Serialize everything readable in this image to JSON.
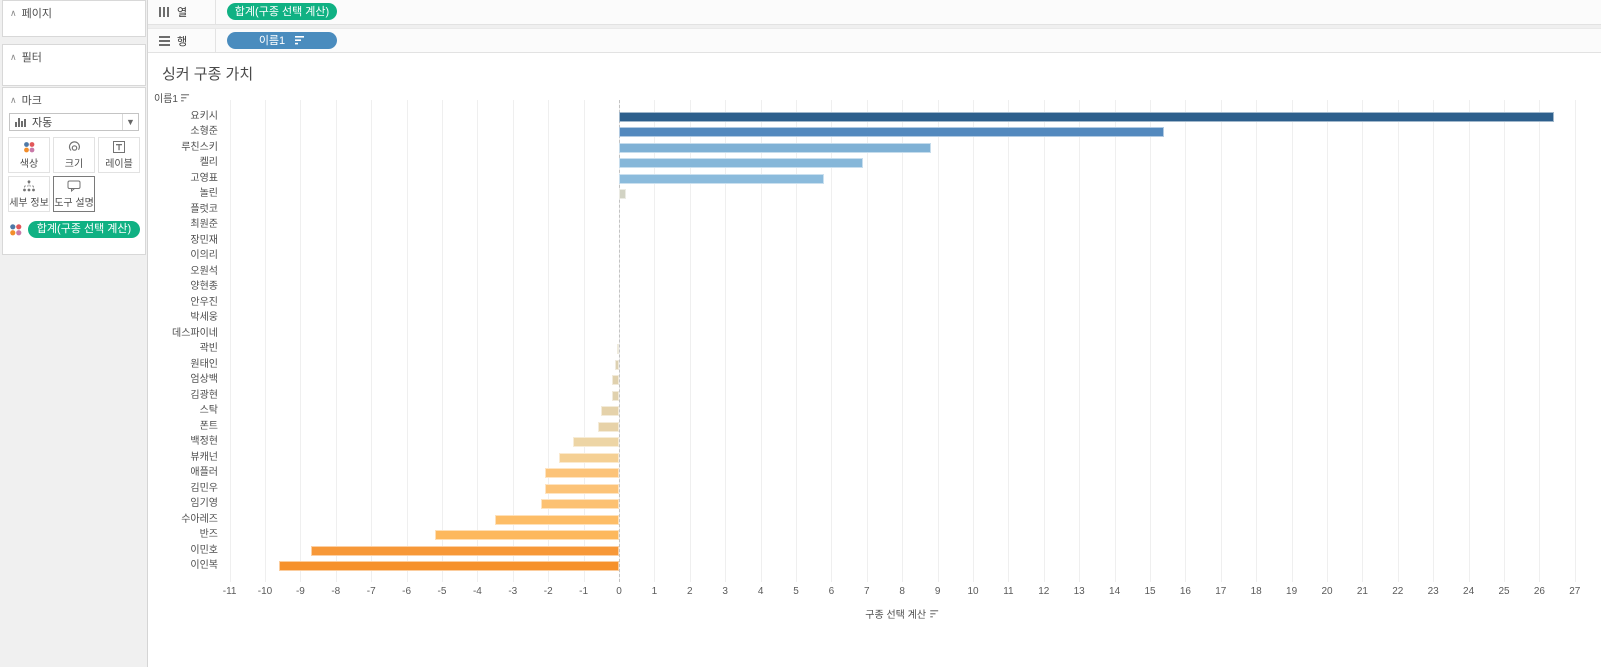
{
  "sidebar": {
    "pages": {
      "label": "페이지"
    },
    "filters": {
      "label": "필터"
    },
    "marks": {
      "label": "마크",
      "mark_type": "자동",
      "buttons": [
        {
          "label": "색상"
        },
        {
          "label": "크기"
        },
        {
          "label": "레이블"
        },
        {
          "label": "세부 정보"
        },
        {
          "label": "도구 설명"
        }
      ],
      "legend_pill": "합계(구종 선택 계산)"
    },
    "icon_dot_colors": [
      "#4e79a7",
      "#e15759",
      "#f28e2b",
      "#c979a9"
    ]
  },
  "shelves": {
    "columns": {
      "label": "열",
      "pill": "합계(구종 선택 계산)",
      "pill_color": "#10b183"
    },
    "rows": {
      "label": "행",
      "pill": "이름1",
      "pill_color": "#4a8cbe",
      "sorted": true
    }
  },
  "chart_data": {
    "type": "bar",
    "orientation": "horizontal",
    "title": "싱커 구종 가치",
    "row_field": "이름1",
    "xlabel": "구종 선택 계산",
    "xlim": [
      -11,
      27
    ],
    "grid": true,
    "zero_line": "dashed",
    "categories": [
      "요키시",
      "소형준",
      "루친스키",
      "켈리",
      "고영표",
      "놀린",
      "플럿코",
      "최원준",
      "장민재",
      "이의리",
      "오원석",
      "양현종",
      "안우진",
      "박세웅",
      "데스파이네",
      "곽빈",
      "원태인",
      "엄상백",
      "김광현",
      "스탁",
      "폰트",
      "백정현",
      "뷰캐넌",
      "애플러",
      "김민우",
      "임기영",
      "수아레즈",
      "반즈",
      "이민호",
      "이인복"
    ],
    "values": [
      26.4,
      15.4,
      8.8,
      6.9,
      5.8,
      0.2,
      0,
      0,
      0,
      0,
      0,
      0,
      0,
      0,
      0,
      -0.05,
      -0.1,
      -0.2,
      -0.2,
      -0.5,
      -0.6,
      -1.3,
      -1.7,
      -2.1,
      -2.1,
      -2.2,
      -3.5,
      -5.2,
      -8.7,
      -9.6
    ],
    "bar_colors": [
      "#2d5f8c",
      "#5389be",
      "#7fb1d5",
      "#86b7d9",
      "#8bbbdc",
      "#d2d3c4",
      "#d6d3c2",
      "#d6d3c2",
      "#d6d3c2",
      "#d6d3c2",
      "#d6d3c2",
      "#d6d3c2",
      "#d6d3c2",
      "#d6d3c2",
      "#d6d3c2",
      "#dcd2b5",
      "#ddd1b2",
      "#e0d1ae",
      "#e0d1ae",
      "#e5d2aa",
      "#e7d2a8",
      "#edd5a5",
      "#f5d094",
      "#fcc378",
      "#fcc378",
      "#fcc172",
      "#fdbd67",
      "#fdb85d",
      "#f79838",
      "#f6912c"
    ]
  }
}
